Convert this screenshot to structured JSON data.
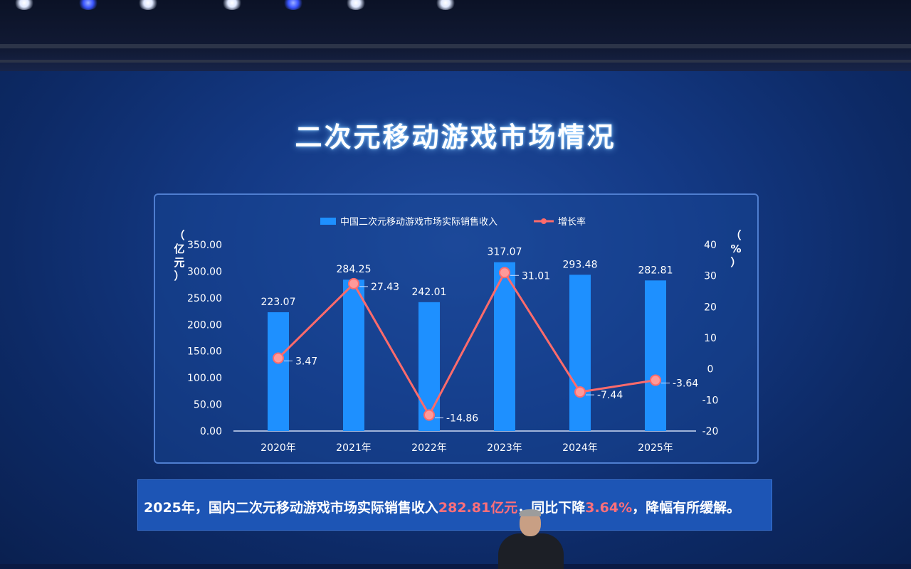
{
  "page": {
    "title": "二次元移动游戏市场情况",
    "caption": {
      "before": "2025年，国内二次元移动游戏市场实际销售收入",
      "revenue": "282.81亿元",
      "middle": "，同比下降",
      "rate": "3.64%",
      "after": "，降幅有所缓解。"
    }
  },
  "colors": {
    "bar": "#1e90ff",
    "line": "#ff6b6b",
    "axis_text": "#ffffff"
  },
  "chart_data": {
    "type": "bar",
    "categories": [
      "2020年",
      "2021年",
      "2022年",
      "2023年",
      "2024年",
      "2025年"
    ],
    "series": [
      {
        "name": "中国二次元移动游戏市场实际销售收入",
        "type": "bar",
        "axis": "left",
        "values": [
          223.07,
          284.25,
          242.01,
          317.07,
          293.48,
          282.81
        ],
        "labels": [
          "223.07",
          "284.25",
          "242.01",
          "317.07",
          "293.48",
          "282.81"
        ]
      },
      {
        "name": "增长率",
        "type": "line",
        "axis": "right",
        "values": [
          3.47,
          27.43,
          -14.86,
          31.01,
          -7.44,
          -3.64
        ],
        "labels": [
          "3.47",
          "27.43",
          "-14.86",
          "31.01",
          "-7.44",
          "-3.64"
        ]
      }
    ],
    "ylabel": "（亿元）",
    "y2label": "（%）",
    "ylim": [
      0,
      350
    ],
    "y2lim": [
      -20,
      40
    ],
    "yticks": [
      "0.00",
      "50.00",
      "100.00",
      "150.00",
      "200.00",
      "250.00",
      "300.00",
      "350.00"
    ],
    "y2ticks": [
      "-20",
      "-10",
      "0",
      "10",
      "20",
      "30",
      "40"
    ],
    "legend_position": "top",
    "grid": false
  }
}
